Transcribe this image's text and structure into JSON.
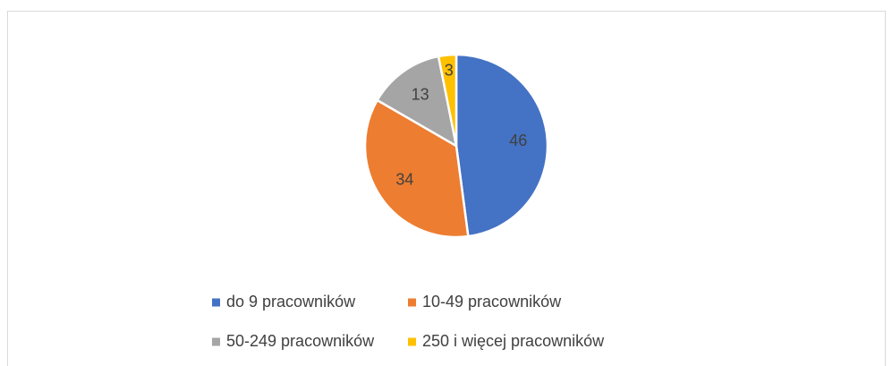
{
  "chart_data": {
    "type": "pie",
    "categories": [
      "do 9 pracowników",
      "10-49 pracowników",
      "50-249 pracowników",
      "250 i więcej pracowników"
    ],
    "values": [
      46,
      34,
      13,
      3
    ],
    "colors": [
      "#4472c4",
      "#ed7d31",
      "#a5a5a5",
      "#ffc000"
    ],
    "legend": "bottom"
  }
}
